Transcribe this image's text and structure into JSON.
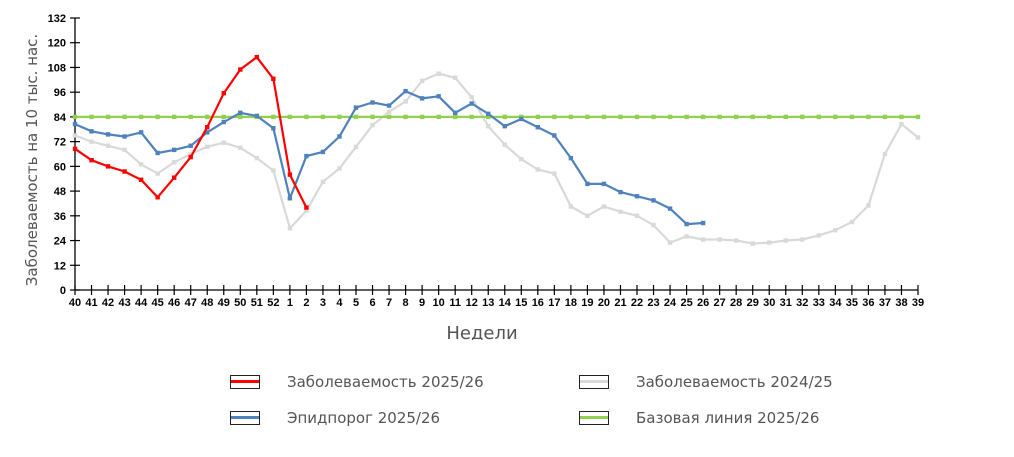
{
  "chart_data": {
    "type": "line",
    "title": "",
    "xlabel": "Недели",
    "ylabel": "Заболеваемость на 10 тыс. нас.",
    "ylim": [
      0,
      132
    ],
    "yticks": [
      0,
      12,
      24,
      36,
      48,
      60,
      72,
      84,
      96,
      108,
      120,
      132
    ],
    "grid": false,
    "legend_position": "bottom",
    "categories": [
      "40",
      "41",
      "42",
      "43",
      "44",
      "45",
      "46",
      "47",
      "48",
      "49",
      "50",
      "51",
      "52",
      "1",
      "2",
      "3",
      "4",
      "5",
      "6",
      "7",
      "8",
      "9",
      "10",
      "11",
      "12",
      "13",
      "14",
      "15",
      "16",
      "17",
      "18",
      "19",
      "20",
      "21",
      "22",
      "23",
      "24",
      "25",
      "26",
      "27",
      "28",
      "29",
      "30",
      "31",
      "32",
      "33",
      "34",
      "35",
      "36",
      "37",
      "38",
      "39"
    ],
    "series": [
      {
        "name": "Заболеваемость 2025/26",
        "color": "#ff0000",
        "values": [
          68.5,
          63,
          60,
          57.5,
          53.5,
          45,
          54.5,
          64.5,
          79,
          95.5,
          107,
          113,
          102.5,
          56,
          40
        ]
      },
      {
        "name": "Эпидпорог 2025/26",
        "color": "#4f81bd",
        "values": [
          80.5,
          77,
          75.5,
          74.5,
          76.5,
          66.5,
          68,
          70,
          76.5,
          81.5,
          86,
          84.5,
          78.5,
          44.5,
          65,
          67,
          74.5,
          88.5,
          91,
          89.5,
          96.5,
          93,
          94,
          86,
          90.5,
          85.5,
          79.5,
          83,
          79,
          75,
          64,
          51.5,
          51.5,
          47.5,
          45.5,
          43.5,
          39.5,
          32,
          32.5
        ]
      },
      {
        "name": "Заболеваемость 2024/25",
        "color": "#d9d9d9",
        "values": [
          75,
          72,
          70,
          68,
          61,
          56.5,
          62,
          66,
          69.5,
          71.5,
          69,
          64,
          58,
          30,
          38.5,
          52.5,
          59,
          69.5,
          80,
          86.5,
          91.5,
          101.5,
          105,
          103,
          93.5,
          79.5,
          70.5,
          63.5,
          58.5,
          56.5,
          40.5,
          36,
          40.5,
          38,
          36,
          31.5,
          23,
          26,
          24.5,
          24.5,
          24,
          22.5,
          23,
          24,
          24.5,
          26.5,
          29,
          33,
          41,
          66,
          80.5,
          74
        ]
      },
      {
        "name": "Базовая линия 2025/26",
        "color": "#92d050",
        "values": [
          84,
          84,
          84,
          84,
          84,
          84,
          84,
          84,
          84,
          84,
          84,
          84,
          84,
          84,
          84,
          84,
          84,
          84,
          84,
          84,
          84,
          84,
          84,
          84,
          84,
          84,
          84,
          84,
          84,
          84,
          84,
          84,
          84,
          84,
          84,
          84,
          84,
          84,
          84,
          84,
          84,
          84,
          84,
          84,
          84,
          84,
          84,
          84,
          84,
          84,
          84,
          84
        ]
      }
    ]
  },
  "legend": {
    "items": [
      {
        "label": "Заболеваемость 2025/26",
        "color": "#ff0000"
      },
      {
        "label": "Эпидпорог 2025/26",
        "color": "#4f81bd"
      },
      {
        "label": "Заболеваемость 2024/25",
        "color": "#d9d9d9"
      },
      {
        "label": "Базовая линия 2025/26",
        "color": "#92d050"
      }
    ]
  }
}
